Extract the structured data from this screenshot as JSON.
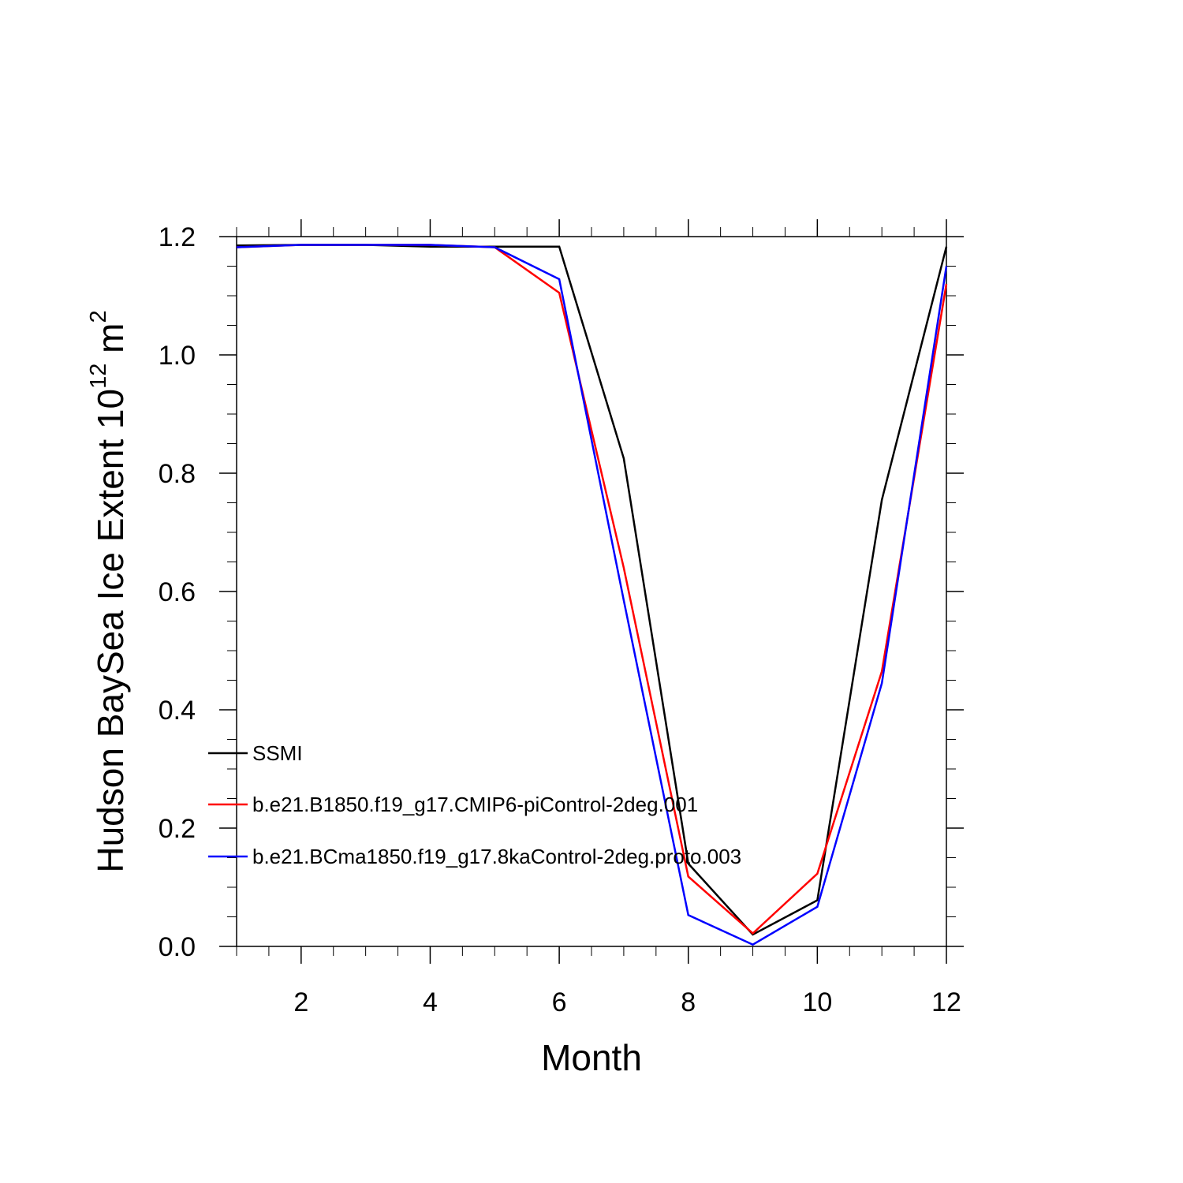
{
  "chart_data": {
    "type": "line",
    "title": "",
    "xlabel": "Month",
    "ylabel": {
      "main": "Hudson BaySea Ice Extent 10",
      "superscript1": "12",
      "unit": " m",
      "superscript2": "2"
    },
    "xlim": [
      1,
      12
    ],
    "ylim": [
      0.0,
      1.2
    ],
    "x_ticks": [
      2,
      4,
      6,
      8,
      10,
      12
    ],
    "x_tick_labels": [
      "2",
      "4",
      "6",
      "8",
      "10",
      "12"
    ],
    "y_ticks": [
      0.0,
      0.2,
      0.4,
      0.6,
      0.8,
      1.0,
      1.2
    ],
    "y_tick_labels": [
      "0.0",
      "0.2",
      "0.4",
      "0.6",
      "0.8",
      "1.0",
      "1.2"
    ],
    "grid": false,
    "legend_position": "lower-left",
    "x": [
      1,
      2,
      3,
      4,
      5,
      6,
      7,
      8,
      9,
      10,
      11,
      12
    ],
    "series": [
      {
        "name": "SSMI",
        "color": "#000000",
        "values": [
          1.185,
          1.186,
          1.186,
          1.183,
          1.183,
          1.183,
          0.825,
          0.14,
          0.02,
          0.078,
          0.755,
          1.183
        ]
      },
      {
        "name": "b.e21.B1850.f19_g17.CMIP6-piControl-2deg.001",
        "color": "#ff0000",
        "values": [
          1.182,
          1.186,
          1.186,
          1.186,
          1.182,
          1.105,
          0.64,
          0.118,
          0.022,
          0.123,
          0.465,
          1.12
        ]
      },
      {
        "name": "b.e21.BCma1850.f19_g17.8kaControl-2deg.proto.003",
        "color": "#0000ff",
        "values": [
          1.182,
          1.186,
          1.186,
          1.186,
          1.182,
          1.128,
          0.585,
          0.053,
          0.003,
          0.067,
          0.445,
          1.15
        ]
      }
    ]
  }
}
